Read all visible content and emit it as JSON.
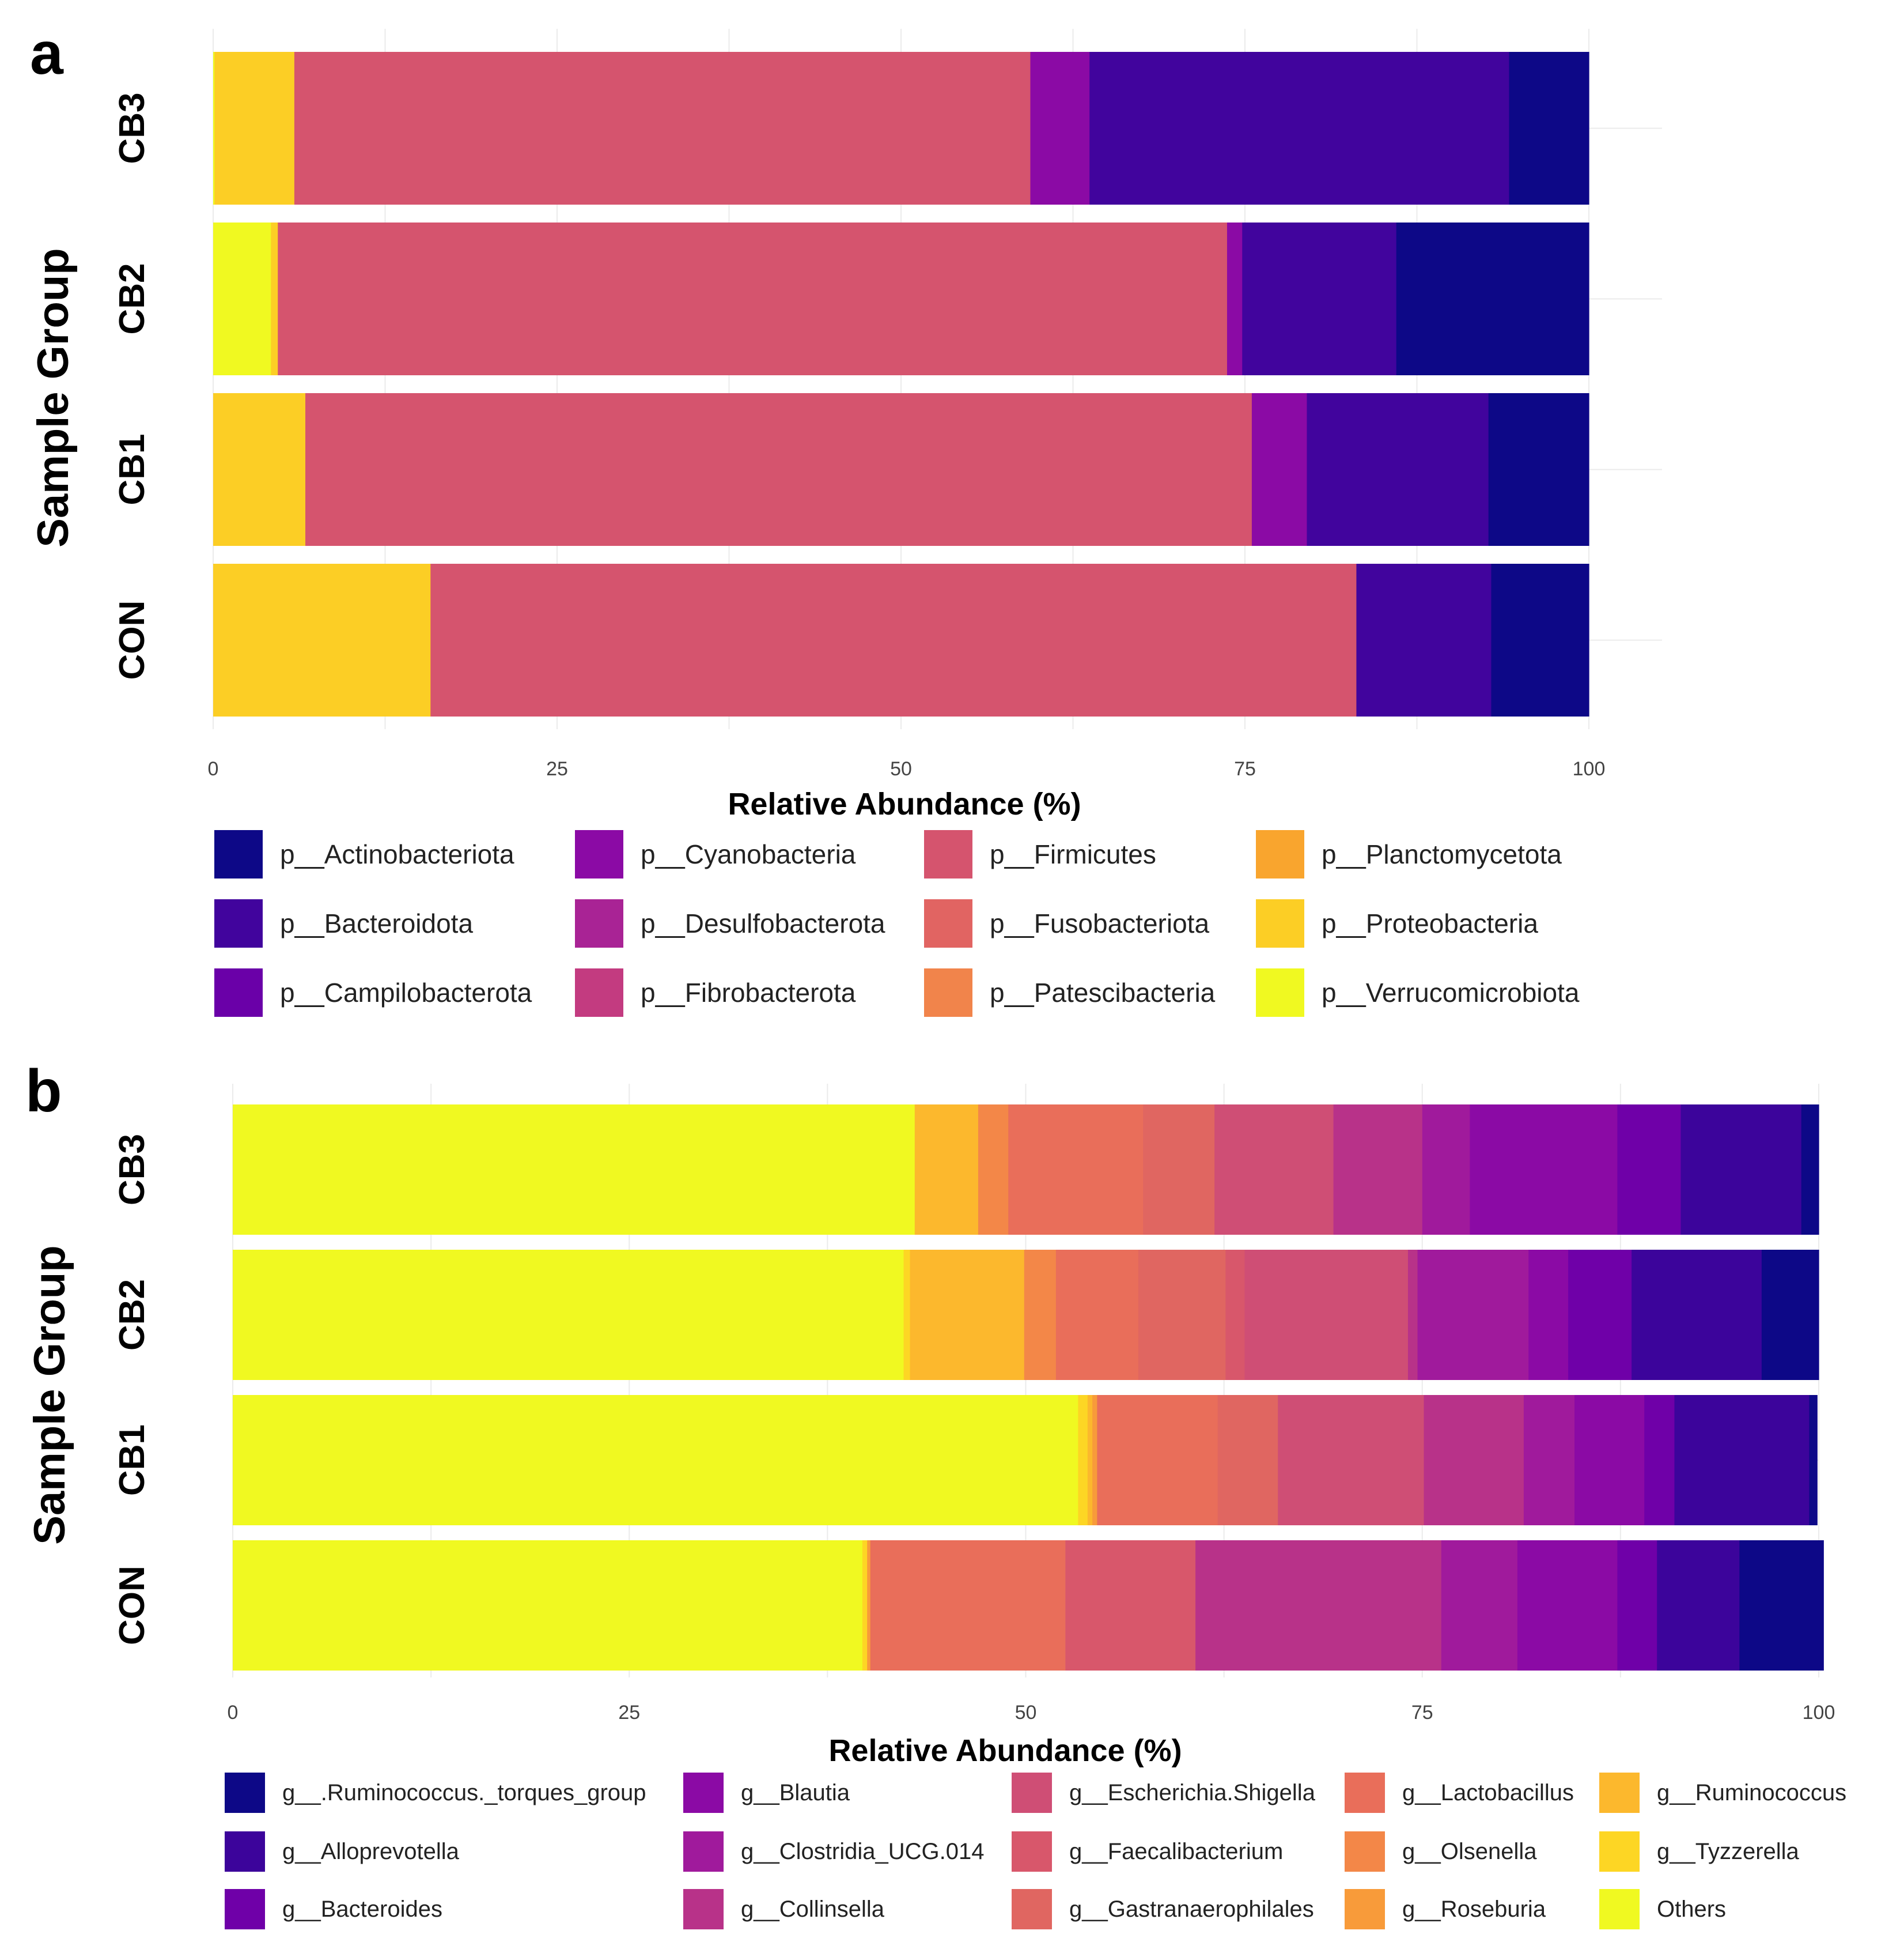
{
  "chart_data": [
    {
      "panel": "a",
      "type": "bar",
      "orientation": "horizontal",
      "stacked": true,
      "xlabel": "Relative Abundance (%)",
      "ylabel": "Sample Group",
      "xlim": [
        0,
        100
      ],
      "xticks": [
        "0",
        "25",
        "50",
        "75",
        "100"
      ],
      "categories": [
        "CB3",
        "CB2",
        "CB1",
        "CON"
      ],
      "series": [
        {
          "name": "p__Verrucomicrobiota",
          "color": "#f0f921",
          "values": [
            0.1,
            4.2,
            0,
            0
          ]
        },
        {
          "name": "p__Proteobacteria",
          "color": "#fcce25",
          "values": [
            5.8,
            0.5,
            6.7,
            15.8
          ]
        },
        {
          "name": "p__Firmicutes",
          "color": "#d5546e",
          "values": [
            53.5,
            69.0,
            68.8,
            67.3
          ]
        },
        {
          "name": "p__Cyanobacteria",
          "color": "#8b0aa5",
          "values": [
            4.3,
            1.1,
            4.0,
            0
          ]
        },
        {
          "name": "p__Bacteroidota",
          "color": "#41049d",
          "values": [
            30.5,
            11.2,
            13.2,
            9.8
          ]
        },
        {
          "name": "p__Actinobacteriota",
          "color": "#0d0887",
          "values": [
            5.8,
            14.0,
            7.3,
            7.1
          ]
        }
      ],
      "legend": {
        "position": "bottom",
        "entries": [
          {
            "label": "p__Actinobacteriota",
            "color": "#0d0887"
          },
          {
            "label": "p__Bacteroidota",
            "color": "#41049d"
          },
          {
            "label": "p__Campilobacterota",
            "color": "#6a00a8"
          },
          {
            "label": "p__Cyanobacteria",
            "color": "#8b0aa5"
          },
          {
            "label": "p__Desulfobacterota",
            "color": "#a92395"
          },
          {
            "label": "p__Fibrobacterota",
            "color": "#c33b80"
          },
          {
            "label": "p__Firmicutes",
            "color": "#d5546e"
          },
          {
            "label": "p__Fusobacteriota",
            "color": "#e16462"
          },
          {
            "label": "p__Patescibacteria",
            "color": "#f1844b"
          },
          {
            "label": "p__Planctomycetota",
            "color": "#f9a52e"
          },
          {
            "label": "p__Proteobacteria",
            "color": "#fcce25"
          },
          {
            "label": "p__Verrucomicrobiota",
            "color": "#f0f921"
          }
        ]
      }
    },
    {
      "panel": "b",
      "type": "bar",
      "orientation": "horizontal",
      "stacked": true,
      "xlabel": "Relative Abundance (%)",
      "ylabel": "Sample Group",
      "xlim": [
        0,
        100
      ],
      "xticks": [
        "0",
        "25",
        "50",
        "75",
        "100"
      ],
      "categories": [
        "CB3",
        "CB2",
        "CB1",
        "CON"
      ],
      "series": [
        {
          "name": "Others",
          "color": "#f0f921",
          "values": [
            43.0,
            42.3,
            53.3,
            39.7
          ]
        },
        {
          "name": "g__Tyzzerella",
          "color": "#fdd624",
          "values": [
            0,
            0.4,
            0.6,
            0.3
          ]
        },
        {
          "name": "g__Ruminococcus",
          "color": "#fcb82d",
          "values": [
            4.0,
            7.2,
            0.3,
            0
          ]
        },
        {
          "name": "g__Roseburia",
          "color": "#f89b3a",
          "values": [
            0,
            0,
            0.3,
            0.2
          ]
        },
        {
          "name": "g__Olsenella",
          "color": "#f38748",
          "values": [
            1.9,
            2.0,
            0,
            0
          ]
        },
        {
          "name": "g__Lactobacillus",
          "color": "#e96e5a",
          "values": [
            8.5,
            5.2,
            7.6,
            12.3
          ]
        },
        {
          "name": "g__Gastranaerophilales",
          "color": "#e06661",
          "values": [
            4.5,
            5.5,
            3.8,
            0
          ]
        },
        {
          "name": "g__Faecalibacterium",
          "color": "#d8576b",
          "values": [
            0,
            1.2,
            0,
            8.2
          ]
        },
        {
          "name": "g__Escherichia.Shigella",
          "color": "#cf4e75",
          "values": [
            7.5,
            10.3,
            9.2,
            0
          ]
        },
        {
          "name": "g__Collinsella",
          "color": "#b83289",
          "values": [
            5.6,
            0.6,
            6.3,
            15.5
          ]
        },
        {
          "name": "g__Clostridia_UCG.014",
          "color": "#a01a9c",
          "values": [
            3.0,
            7.0,
            3.2,
            4.8
          ]
        },
        {
          "name": "g__Blautia",
          "color": "#8b0aa5",
          "values": [
            9.3,
            2.5,
            4.4,
            6.3
          ]
        },
        {
          "name": "g__Bacteroides",
          "color": "#6f00a8",
          "values": [
            4.0,
            4.0,
            1.9,
            2.5
          ]
        },
        {
          "name": "g__Alloprevotella",
          "color": "#3c049b",
          "values": [
            7.6,
            8.2,
            8.5,
            5.2
          ]
        },
        {
          "name": "g__.Ruminococcus._torques_group",
          "color": "#0d0887",
          "values": [
            1.1,
            3.6,
            0.5,
            5.3
          ]
        }
      ],
      "legend": {
        "position": "bottom",
        "entries": [
          {
            "label": "g__.Ruminococcus._torques_group",
            "color": "#0d0887"
          },
          {
            "label": "g__Alloprevotella",
            "color": "#3c049b"
          },
          {
            "label": "g__Bacteroides",
            "color": "#6f00a8"
          },
          {
            "label": "g__Blautia",
            "color": "#8b0aa5"
          },
          {
            "label": "g__Clostridia_UCG.014",
            "color": "#a01a9c"
          },
          {
            "label": "g__Collinsella",
            "color": "#b83289"
          },
          {
            "label": "g__Escherichia.Shigella",
            "color": "#cf4e75"
          },
          {
            "label": "g__Faecalibacterium",
            "color": "#d8576b"
          },
          {
            "label": "g__Gastranaerophilales",
            "color": "#e06661"
          },
          {
            "label": "g__Lactobacillus",
            "color": "#e96e5a"
          },
          {
            "label": "g__Olsenella",
            "color": "#f38748"
          },
          {
            "label": "g__Roseburia",
            "color": "#f89b3a"
          },
          {
            "label": "g__Ruminococcus",
            "color": "#fcb82d"
          },
          {
            "label": "g__Tyzzerella",
            "color": "#fdd624"
          },
          {
            "label": "Others",
            "color": "#f0f921"
          }
        ]
      }
    }
  ],
  "panels": [
    {
      "letter": "a",
      "ylabel": "Sample Group",
      "xlabel": "Relative Abundance (%)"
    },
    {
      "letter": "b",
      "ylabel": "Sample Group",
      "xlabel": "Relative Abundance (%)"
    }
  ]
}
